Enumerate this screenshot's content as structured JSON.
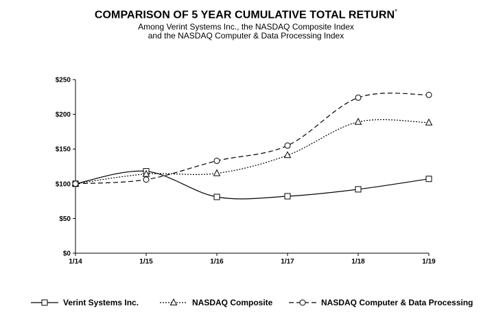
{
  "chart_data": {
    "type": "line",
    "title": "COMPARISON OF 5 YEAR CUMULATIVE TOTAL RETURN",
    "title_mark": "*",
    "subtitle_lines": [
      "Among Verint Systems Inc., the NASDAQ Composite Index",
      "and the NASDAQ Computer & Data Processing Index"
    ],
    "xlabel": "",
    "ylabel": "",
    "categories": [
      "1/14",
      "1/15",
      "1/16",
      "1/17",
      "1/18",
      "1/19"
    ],
    "y_ticks": [
      "$0",
      "$50",
      "$100",
      "$150",
      "$200",
      "$250"
    ],
    "y_tick_values": [
      0,
      50,
      100,
      150,
      200,
      250
    ],
    "ylim": [
      0,
      250
    ],
    "grid": false,
    "legend_position": "bottom",
    "series": [
      {
        "name": "Verint Systems Inc.",
        "marker": "square",
        "dash": "solid",
        "color": "#000000",
        "values": [
          100,
          118,
          81,
          82,
          92,
          107
        ]
      },
      {
        "name": "NASDAQ Composite",
        "marker": "triangle",
        "dash": "dotted",
        "color": "#000000",
        "values": [
          100,
          114,
          115,
          141,
          189,
          188
        ]
      },
      {
        "name": "NASDAQ Computer & Data Processing",
        "marker": "circle",
        "dash": "dashed",
        "color": "#000000",
        "values": [
          100,
          106,
          133,
          155,
          224,
          228
        ]
      }
    ]
  }
}
